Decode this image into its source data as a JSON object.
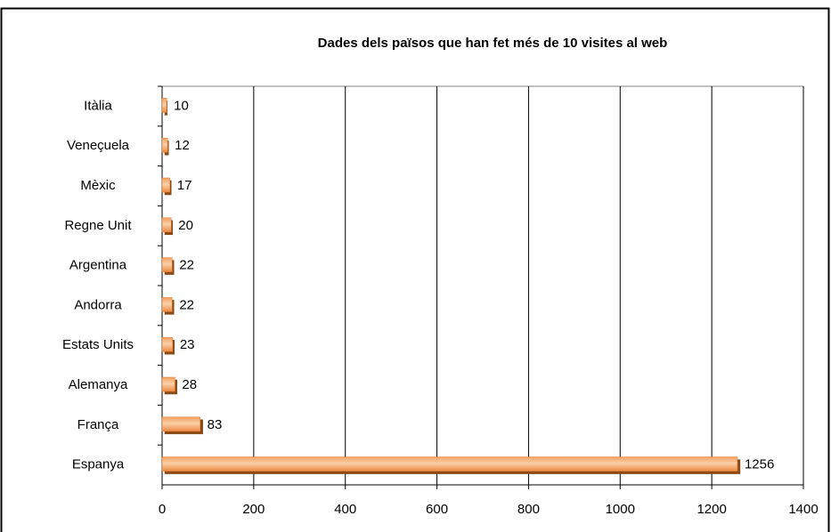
{
  "chart_data": {
    "type": "barh",
    "title": "Dades dels països que han fet més de 10 visites al web",
    "categories": [
      "Itàlia",
      "Veneçuela",
      "Mèxic",
      "Regne Unit",
      "Argentina",
      "Andorra",
      "Estats Units",
      "Alemanya",
      "França",
      "Espanya"
    ],
    "values": [
      10,
      12,
      17,
      20,
      22,
      22,
      23,
      28,
      83,
      1256
    ],
    "color": "#f4a460",
    "xlim": [
      0,
      1400
    ],
    "xticks": [
      0,
      200,
      400,
      600,
      800,
      1000,
      1200,
      1400
    ],
    "grid": true
  }
}
